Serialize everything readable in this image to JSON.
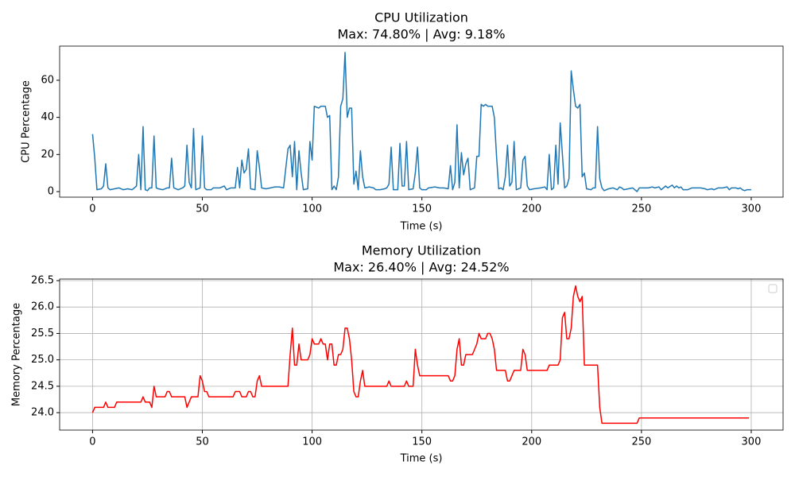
{
  "chart_data": [
    {
      "type": "line",
      "title": "CPU Utilization",
      "subtitle": "Max: 74.80% | Avg: 9.18%",
      "xlabel": "Time (s)",
      "ylabel": "CPU Percentage",
      "x": [
        0,
        1,
        2,
        4,
        5,
        6,
        7,
        8,
        10,
        12,
        14,
        16,
        18,
        20,
        21,
        22,
        23,
        24,
        25,
        26,
        27,
        28,
        29,
        30,
        32,
        34,
        35,
        36,
        37,
        39,
        41,
        42,
        43,
        44,
        45,
        46,
        47,
        49,
        50,
        51,
        52,
        54,
        55,
        58,
        60,
        61,
        63,
        65,
        66,
        67,
        68,
        69,
        70,
        71,
        72,
        74,
        75,
        76,
        77,
        79,
        81,
        83,
        85,
        87,
        89,
        90,
        91,
        92,
        93,
        94,
        95,
        96,
        98,
        99,
        100,
        101,
        103,
        104,
        106,
        107,
        108,
        109,
        110,
        111,
        112,
        113,
        114,
        115,
        116,
        117,
        118,
        119,
        120,
        121,
        122,
        123,
        124,
        126,
        128,
        129,
        131,
        133,
        134,
        135,
        136,
        137,
        139,
        140,
        141,
        142,
        143,
        144,
        146,
        147,
        148,
        149,
        150,
        152,
        153,
        156,
        158,
        160,
        162,
        163,
        164,
        165,
        166,
        167,
        168,
        169,
        170,
        171,
        172,
        174,
        175,
        176,
        177,
        178,
        179,
        180,
        182,
        183,
        184,
        185,
        186,
        187,
        188,
        189,
        190,
        191,
        192,
        193,
        195,
        196,
        197,
        198,
        199,
        201,
        204,
        206,
        207,
        208,
        209,
        210,
        211,
        212,
        213,
        214,
        215,
        216,
        217,
        218,
        219,
        220,
        221,
        222,
        223,
        224,
        225,
        227,
        228,
        229,
        230,
        231,
        232,
        233,
        235,
        237,
        239,
        240,
        241,
        242,
        244,
        246,
        247,
        248,
        249,
        251,
        253,
        255,
        256,
        258,
        259,
        261,
        262,
        264,
        265,
        266,
        267,
        268,
        269,
        271,
        273,
        275,
        277,
        279,
        280,
        282,
        283,
        285,
        287,
        289,
        290,
        291,
        293,
        294,
        295,
        296,
        297,
        298,
        300
      ],
      "series": [
        {
          "color": "#1f77b4",
          "values": [
            31,
            18,
            1,
            1.5,
            3,
            15,
            2,
            1,
            1.5,
            2,
            1,
            1.5,
            1,
            3,
            20,
            1,
            35,
            1,
            0.5,
            2,
            2,
            30,
            2,
            1.5,
            1,
            2,
            2,
            18,
            2,
            1,
            2,
            3,
            25,
            5,
            2,
            34,
            1,
            2,
            30,
            2,
            1,
            1,
            2,
            2,
            3,
            1,
            2,
            2,
            13,
            2,
            17,
            10,
            12,
            23,
            1.5,
            1,
            22,
            13,
            2,
            1.5,
            2,
            2.5,
            2.5,
            2,
            23,
            25,
            8,
            27,
            1,
            22,
            10,
            1,
            1.5,
            27,
            17,
            46,
            45,
            46,
            46,
            40,
            41,
            1,
            3,
            1,
            8,
            46,
            50,
            75,
            40,
            45,
            45,
            4,
            11,
            1,
            22,
            8,
            2,
            2.5,
            2,
            1,
            1,
            1.5,
            2,
            4,
            24,
            1,
            1,
            26,
            3,
            3,
            27,
            1,
            1.5,
            10,
            24,
            2,
            1,
            1,
            2,
            2.5,
            2,
            2,
            1.5,
            14,
            1,
            5,
            36,
            2,
            21,
            9,
            15,
            18,
            1,
            2,
            19,
            19,
            47,
            46,
            47,
            46,
            46,
            40,
            19,
            1.5,
            2,
            1,
            8,
            25,
            3,
            5,
            27,
            1,
            2,
            17,
            19,
            3,
            1,
            1.5,
            2,
            2.5,
            1,
            20,
            1,
            2,
            25,
            4,
            37,
            20,
            2,
            3,
            7,
            65,
            55,
            46,
            45,
            47,
            8,
            10,
            1.5,
            1,
            2,
            2,
            35,
            7,
            2,
            0.5,
            1.5,
            2,
            1,
            2.5,
            2,
            1,
            1.5,
            2,
            1,
            0,
            2,
            2,
            2,
            2.5,
            2,
            2.5,
            1,
            3,
            2,
            3.5,
            2,
            3,
            2,
            2.5,
            1,
            1,
            2,
            2,
            2,
            1.5,
            1,
            1.5,
            1,
            2,
            2,
            2.5,
            1,
            2,
            2,
            1.5,
            2,
            1,
            0.5,
            1,
            1
          ]
        }
      ],
      "xlim": [
        -15,
        314.5
      ],
      "ylim": [
        -3,
        78.4
      ],
      "xticks": [
        0,
        50,
        100,
        150,
        200,
        250,
        300
      ],
      "yticks": [
        0,
        20,
        40,
        60
      ],
      "grid": false
    },
    {
      "type": "line",
      "title": "Memory Utilization",
      "subtitle": "Max: 26.40% | Avg: 24.52%",
      "xlabel": "Time (s)",
      "ylabel": "Memory Percentage",
      "x": [
        0,
        1,
        4,
        5,
        6,
        7,
        10,
        11,
        18,
        22,
        23,
        24,
        26,
        27,
        28,
        29,
        33,
        34,
        35,
        36,
        42,
        43,
        45,
        48,
        49,
        50,
        51,
        52,
        53,
        64,
        65,
        67,
        68,
        70,
        71,
        72,
        73,
        74,
        75,
        76,
        77,
        89,
        90,
        91,
        92,
        93,
        94,
        95,
        98,
        99,
        100,
        101,
        103,
        104,
        105,
        106,
        107,
        108,
        109,
        110,
        111,
        112,
        113,
        114,
        115,
        116,
        117,
        118,
        119,
        120,
        121,
        122,
        123,
        124,
        134,
        135,
        136,
        142,
        143,
        144,
        146,
        147,
        148,
        149,
        162,
        163,
        164,
        165,
        166,
        167,
        168,
        169,
        170,
        173,
        174,
        175,
        176,
        177,
        179,
        180,
        181,
        182,
        183,
        184,
        188,
        189,
        190,
        191,
        192,
        195,
        196,
        197,
        198,
        207,
        208,
        212,
        213,
        214,
        215,
        216,
        217,
        218,
        219,
        220,
        221,
        222,
        223,
        224,
        230,
        231,
        232,
        248,
        249,
        299
      ],
      "series": [
        {
          "color": "#ff0000",
          "values": [
            24.0,
            24.1,
            24.1,
            24.1,
            24.2,
            24.1,
            24.1,
            24.2,
            24.2,
            24.2,
            24.3,
            24.2,
            24.2,
            24.1,
            24.5,
            24.3,
            24.3,
            24.4,
            24.4,
            24.3,
            24.3,
            24.1,
            24.3,
            24.3,
            24.7,
            24.6,
            24.4,
            24.4,
            24.3,
            24.3,
            24.4,
            24.4,
            24.3,
            24.3,
            24.4,
            24.4,
            24.3,
            24.3,
            24.6,
            24.7,
            24.5,
            24.5,
            25.1,
            25.6,
            24.9,
            24.9,
            25.3,
            25.0,
            25.0,
            25.1,
            25.4,
            25.3,
            25.3,
            25.4,
            25.3,
            25.3,
            25.0,
            25.3,
            25.3,
            24.9,
            24.9,
            25.1,
            25.1,
            25.2,
            25.6,
            25.6,
            25.4,
            25.0,
            24.4,
            24.3,
            24.3,
            24.6,
            24.8,
            24.5,
            24.5,
            24.6,
            24.5,
            24.5,
            24.6,
            24.5,
            24.5,
            25.2,
            24.9,
            24.7,
            24.7,
            24.6,
            24.6,
            24.7,
            25.2,
            25.4,
            24.9,
            24.9,
            25.1,
            25.1,
            25.2,
            25.3,
            25.5,
            25.4,
            25.4,
            25.5,
            25.5,
            25.4,
            25.2,
            24.8,
            24.8,
            24.6,
            24.6,
            24.7,
            24.8,
            24.8,
            25.2,
            25.1,
            24.8,
            24.8,
            24.9,
            24.9,
            25.0,
            25.8,
            25.9,
            25.4,
            25.4,
            25.6,
            26.2,
            26.4,
            26.2,
            26.1,
            26.2,
            24.9,
            24.9,
            24.1,
            23.8,
            23.8,
            23.9,
            23.9
          ]
        }
      ],
      "xlim": [
        -15,
        314.5
      ],
      "ylim": [
        23.67,
        26.53
      ],
      "xticks": [
        0,
        50,
        100,
        150,
        200,
        250,
        300
      ],
      "yticks": [
        {
          "value": 24,
          "label": "24.0"
        },
        24.5,
        {
          "value": 25,
          "label": "25.0"
        },
        25.5,
        {
          "value": 26,
          "label": "26.0"
        },
        26.5
      ],
      "grid": true,
      "legend": "upper right"
    }
  ]
}
